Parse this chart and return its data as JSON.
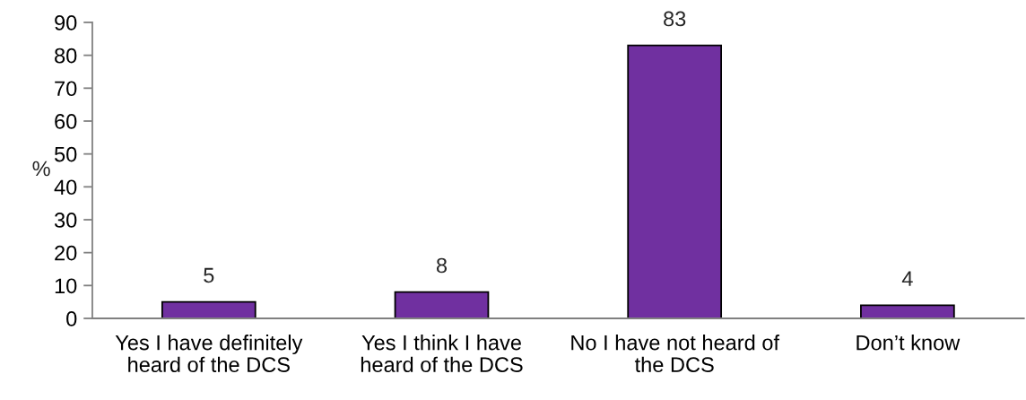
{
  "chart_data": {
    "type": "bar",
    "ylabel": "%",
    "categories": [
      "Yes I have definitely heard of the DCS",
      "Yes I think I have heard of the DCS",
      "No I have not heard of the DCS",
      "Don’t know"
    ],
    "values": [
      5,
      8,
      83,
      4
    ],
    "color": "#7030a0",
    "ylim": [
      0,
      90
    ],
    "yticks": [
      0,
      10,
      20,
      30,
      40,
      50,
      60,
      70,
      80,
      90
    ],
    "data_labels": true
  }
}
